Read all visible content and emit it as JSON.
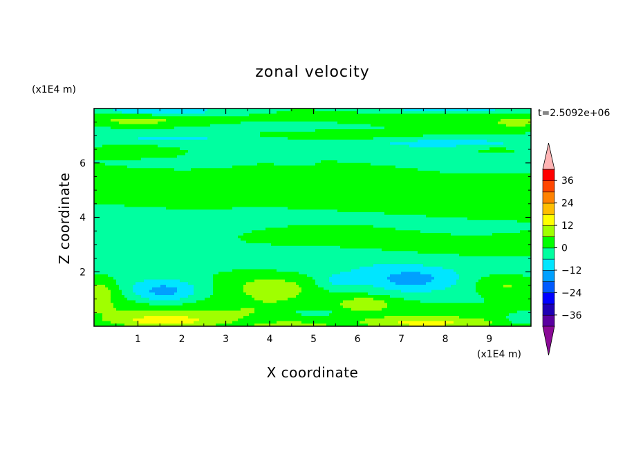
{
  "chart_data": {
    "type": "heatmap",
    "title": "zonal velocity",
    "xlabel": "X coordinate",
    "ylabel": "Z coordinate",
    "x_unit": "(x1E4 m)",
    "y_unit": "(x1E4 m)",
    "time_label": "t=2.5092e+06",
    "xlim": [
      0,
      9.95
    ],
    "ylim": [
      0,
      8.0
    ],
    "x_ticks": [
      1,
      2,
      3,
      4,
      5,
      6,
      7,
      8,
      9
    ],
    "y_ticks": [
      2,
      4,
      6
    ],
    "x_tick_labels": [
      "1",
      "2",
      "3",
      "4",
      "5",
      "6",
      "7",
      "8",
      "9"
    ],
    "y_tick_labels": [
      "2",
      "4",
      "6"
    ],
    "colorbar": {
      "levels": [
        -42,
        -36,
        -30,
        -24,
        -18,
        -12,
        -6,
        0,
        6,
        12,
        18,
        24,
        30,
        36,
        42
      ],
      "colors": [
        "#5a00a0",
        "#1e00b4",
        "#0000ff",
        "#005aff",
        "#00a0ff",
        "#00e6ff",
        "#00ffa0",
        "#00ff00",
        "#a0ff00",
        "#ffff00",
        "#ffbe00",
        "#ff8200",
        "#ff4600",
        "#ff0000"
      ],
      "under_color": "#8a0a96",
      "over_color": "#ffb4b4",
      "tick_values": [
        36,
        24,
        12,
        0,
        -12,
        -24,
        -36
      ],
      "tick_labels": [
        "36",
        "24",
        "12",
        "0",
        "−12",
        "−24",
        "−36"
      ]
    },
    "field_features": [
      {
        "x": 1.0,
        "z": 7.55,
        "rx": 1.3,
        "rz": 0.22,
        "v": 9
      },
      {
        "x": 9.6,
        "z": 7.5,
        "rx": 0.5,
        "rz": 0.18,
        "v": 8
      },
      {
        "x": 5.3,
        "z": 7.0,
        "rx": 2.0,
        "rz": 0.2,
        "v": 8
      },
      {
        "x": 0.8,
        "z": 6.4,
        "rx": 1.1,
        "rz": 0.2,
        "v": 7
      },
      {
        "x": 9.2,
        "z": 6.45,
        "rx": 0.8,
        "rz": 0.15,
        "v": 7
      },
      {
        "x": 4.0,
        "z": 1.5,
        "rx": 1.3,
        "rz": 0.55,
        "v": 10
      },
      {
        "x": 6.2,
        "z": 0.85,
        "rx": 0.6,
        "rz": 0.25,
        "v": 8
      },
      {
        "x": 9.4,
        "z": 1.55,
        "rx": 0.8,
        "rz": 0.45,
        "v": 10
      },
      {
        "x": 0.15,
        "z": 1.35,
        "rx": 0.45,
        "rz": 0.45,
        "v": 9
      },
      {
        "x": 1.6,
        "z": 0.2,
        "rx": 1.1,
        "rz": 0.22,
        "v": 12
      },
      {
        "x": 7.5,
        "z": 0.12,
        "rx": 1.2,
        "rz": 0.18,
        "v": 10
      },
      {
        "x": 4.5,
        "z": 0.05,
        "rx": 0.9,
        "rz": 0.1,
        "v": 7
      },
      {
        "x": 1.6,
        "z": 1.25,
        "rx": 0.8,
        "rz": 0.45,
        "v": -13
      },
      {
        "x": 7.2,
        "z": 1.7,
        "rx": 1.0,
        "rz": 0.45,
        "v": -11
      },
      {
        "x": 5.5,
        "z": 1.6,
        "rx": 0.5,
        "rz": 0.35,
        "v": -7
      },
      {
        "x": 5.0,
        "z": 0.5,
        "rx": 0.6,
        "rz": 0.15,
        "v": -8
      },
      {
        "x": 9.8,
        "z": 0.25,
        "rx": 0.5,
        "rz": 0.25,
        "v": -8
      },
      {
        "x": 1.5,
        "z": 7.9,
        "rx": 1.8,
        "rz": 0.12,
        "v": -9
      },
      {
        "x": 8.0,
        "z": 7.95,
        "rx": 2.0,
        "rz": 0.1,
        "v": -8
      },
      {
        "x": 1.8,
        "z": 6.9,
        "rx": 1.5,
        "rz": 0.15,
        "v": -6
      },
      {
        "x": 8.2,
        "z": 6.75,
        "rx": 1.2,
        "rz": 0.12,
        "v": -6
      },
      {
        "x": 4.6,
        "z": 6.0,
        "rx": 0.3,
        "rz": 0.08,
        "v": -8
      }
    ]
  }
}
